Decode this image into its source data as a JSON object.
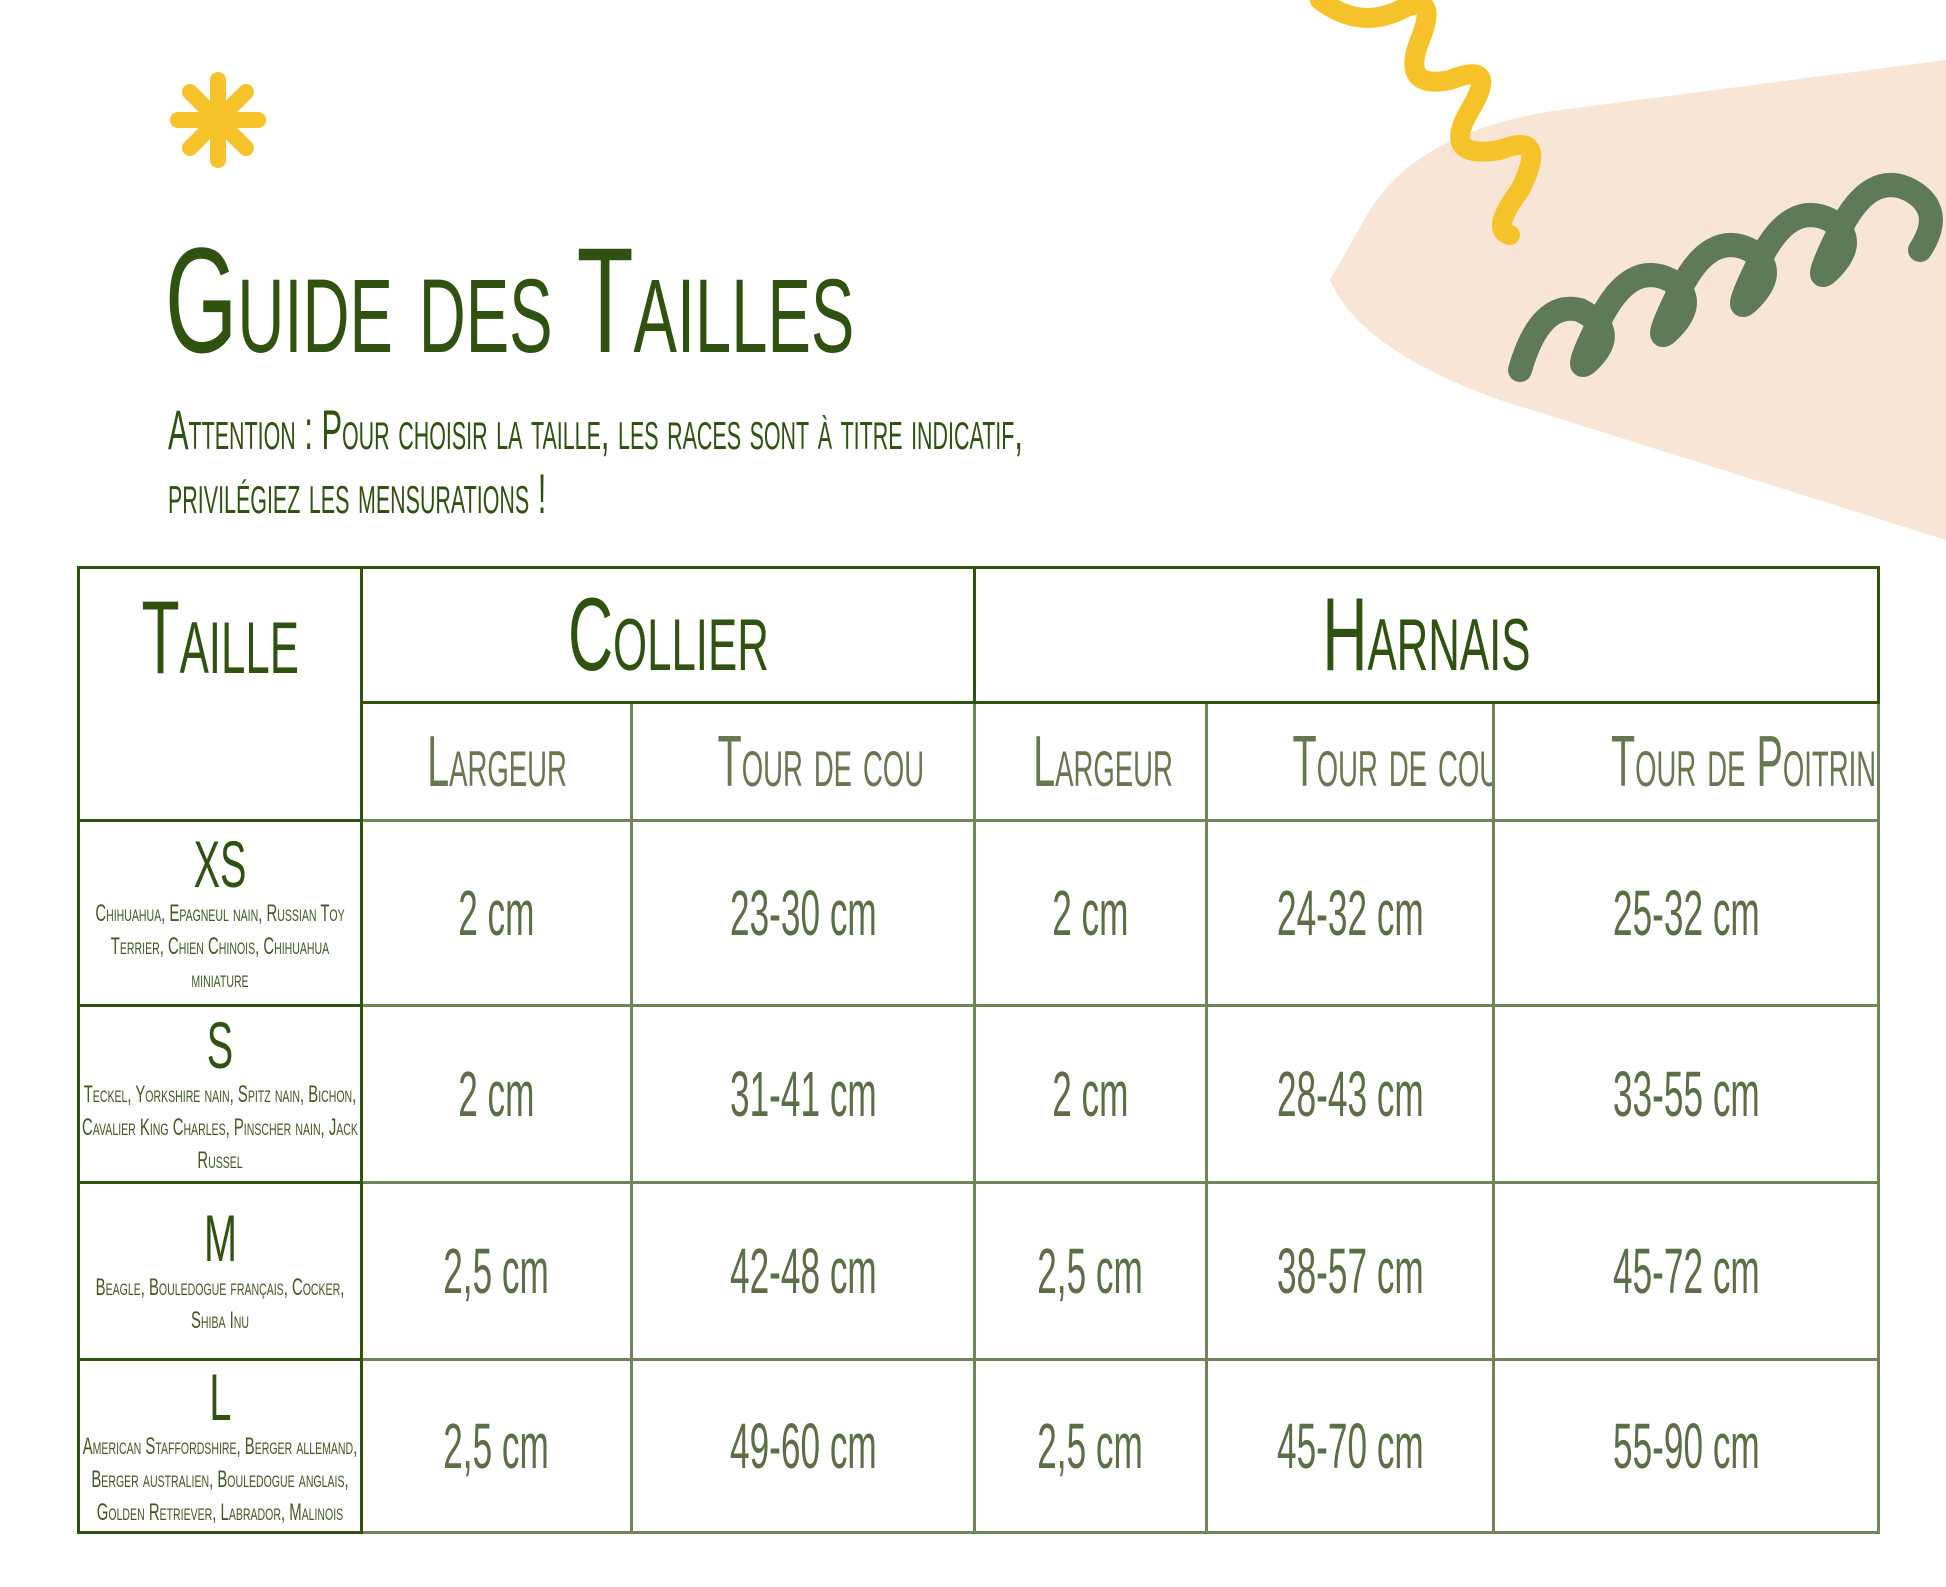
{
  "title": "Guide des Tailles",
  "subtitle": [
    "Attention : Pour choisir la taille, les races sont à titre indicatif,",
    "privilégiez les mensurations !"
  ],
  "colors": {
    "green": "#2f5210",
    "yellow": "#f6c22a",
    "sage": "#5f7a57",
    "beige": "#f8e5d6"
  },
  "table": {
    "taille_header": "Taille",
    "groups": [
      "Collier",
      "Harnais"
    ],
    "subheaders": [
      "Largeur",
      "Tour de cou",
      "Largeur",
      "Tour de cou",
      "Tour de Poitrine"
    ],
    "rows": [
      {
        "size": "XS",
        "breeds": "Chihuahua, Epagneul nain, Russian Toy Terrier, Chien Chinois, Chihuahua miniature",
        "values": [
          "2 cm",
          "23-30 cm",
          "2 cm",
          "24-32 cm",
          "25-32 cm"
        ]
      },
      {
        "size": "S",
        "breeds": "Teckel, Yorkshire nain, Spitz nain, Bichon, Cavalier King Charles, Pinscher nain, Jack Russel",
        "values": [
          "2 cm",
          "31-41 cm",
          "2 cm",
          "28-43 cm",
          "33-55 cm"
        ]
      },
      {
        "size": "M",
        "breeds": "Beagle, Bouledogue français, Cocker, Shiba Inu",
        "values": [
          "2,5 cm",
          "42-48 cm",
          "2,5 cm",
          "38-57 cm",
          "45-72 cm"
        ]
      },
      {
        "size": "L",
        "breeds": "American Staffordshire, Berger allemand, Berger australien, Bouledogue anglais, Golden Retriever, Labrador, Malinois",
        "values": [
          "2,5 cm",
          "49-60 cm",
          "2,5 cm",
          "45-70 cm",
          "55-90 cm"
        ]
      }
    ]
  }
}
